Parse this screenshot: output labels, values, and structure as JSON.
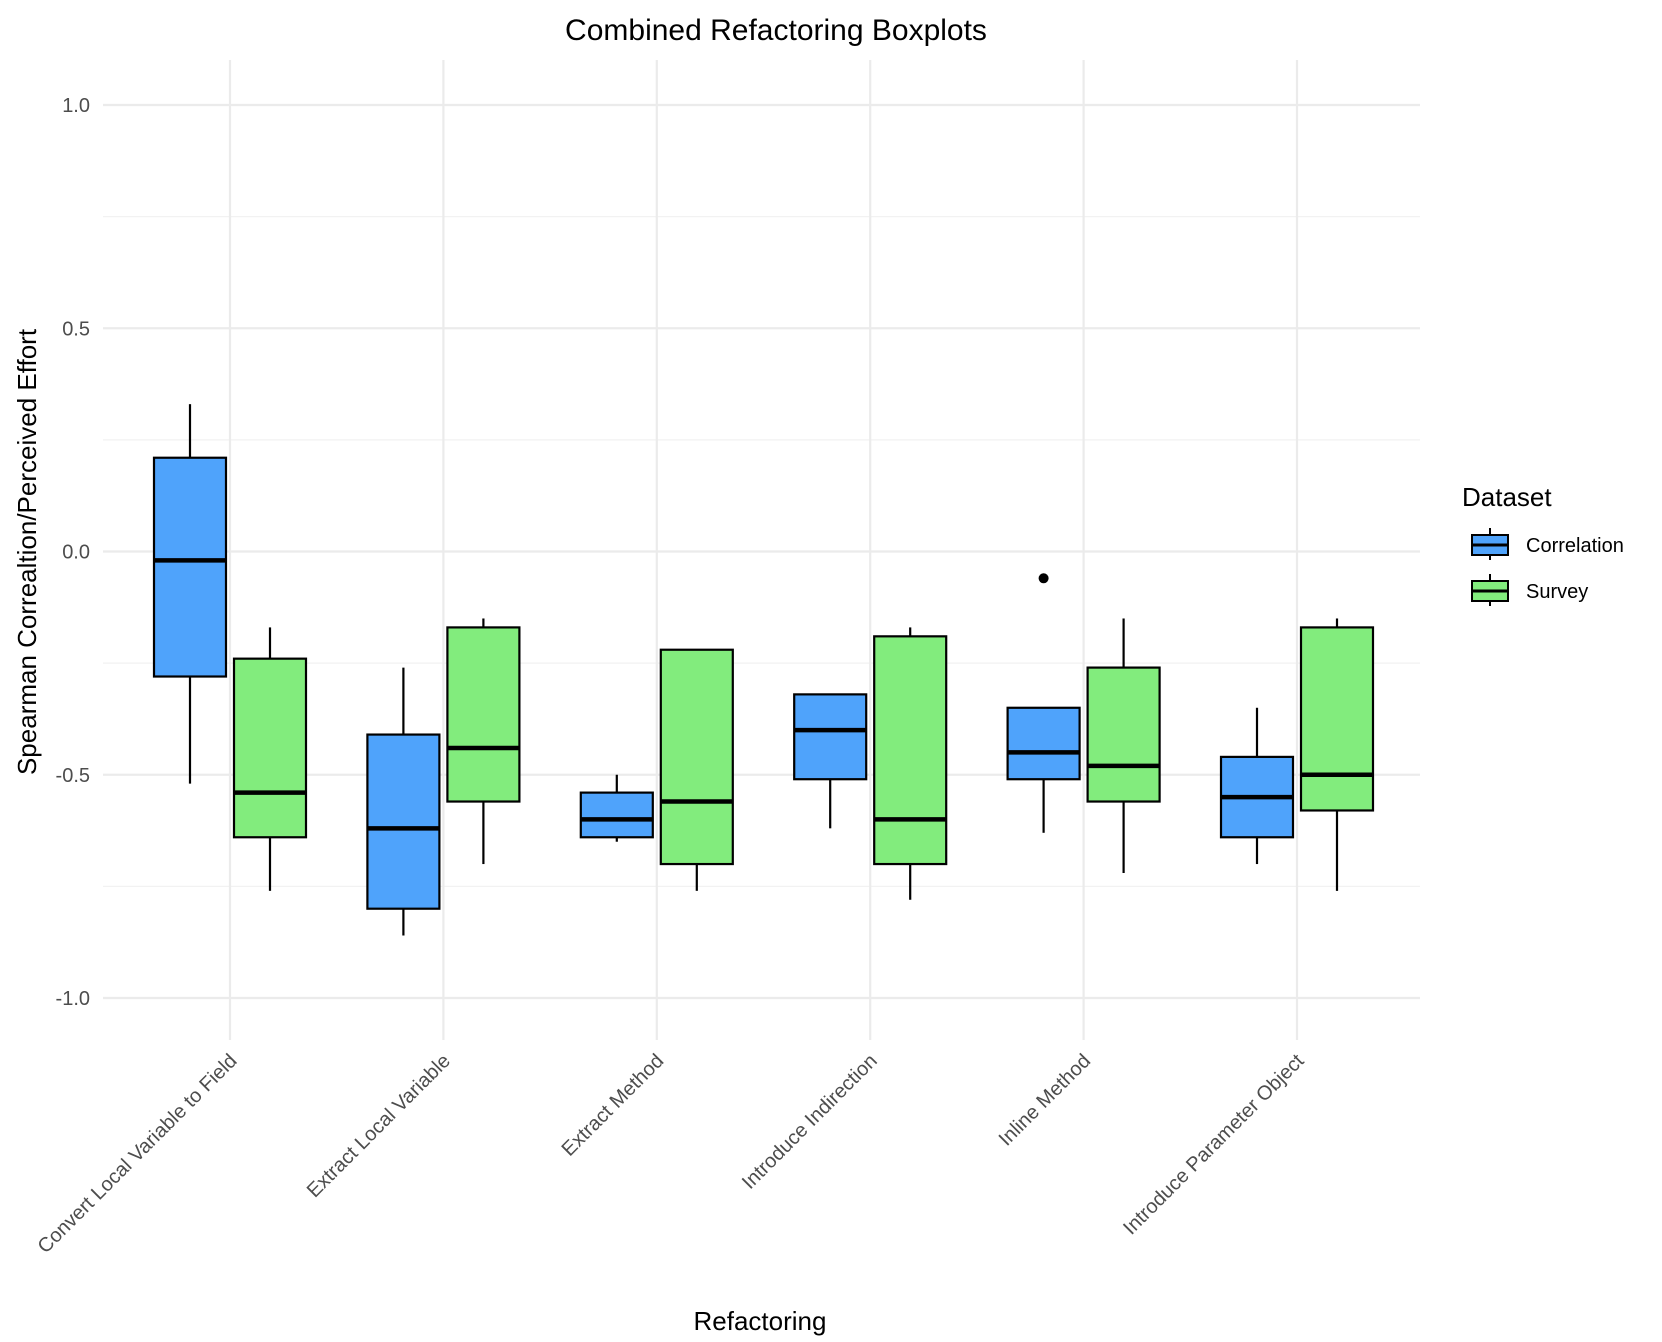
{
  "chart_data": {
    "type": "boxplot",
    "title": "Combined Refactoring Boxplots",
    "xlabel": "Refactoring",
    "ylabel": "Spearman Correaltion/Perceived Effort",
    "ylim": [
      -1.1,
      1.1
    ],
    "yticks": [
      -1.0,
      -0.5,
      0.0,
      0.5,
      1.0
    ],
    "ytick_labels": [
      "-1.0",
      "-0.5",
      "0.0",
      "0.5",
      "1.0"
    ],
    "categories": [
      "Convert Local Variable to Field",
      "Extract Local Variable",
      "Extract Method",
      "Introduce Indirection",
      "Inline Method",
      "Introduce Parameter Object"
    ],
    "legend": {
      "title": "Dataset",
      "position": "right"
    },
    "grid": true,
    "series": [
      {
        "name": "Correlation",
        "color": "#4fa3fb",
        "boxes": [
          {
            "whisker_low": -0.52,
            "q1": -0.28,
            "median": -0.02,
            "q3": 0.21,
            "whisker_high": 0.33,
            "outliers": []
          },
          {
            "whisker_low": -0.86,
            "q1": -0.8,
            "median": -0.62,
            "q3": -0.41,
            "whisker_high": -0.26,
            "outliers": []
          },
          {
            "whisker_low": -0.65,
            "q1": -0.64,
            "median": -0.6,
            "q3": -0.54,
            "whisker_high": -0.5,
            "outliers": []
          },
          {
            "whisker_low": -0.62,
            "q1": -0.51,
            "median": -0.4,
            "q3": -0.32,
            "whisker_high": -0.32,
            "outliers": []
          },
          {
            "whisker_low": -0.63,
            "q1": -0.51,
            "median": -0.45,
            "q3": -0.35,
            "whisker_high": -0.35,
            "outliers": [
              -0.06
            ]
          },
          {
            "whisker_low": -0.7,
            "q1": -0.64,
            "median": -0.55,
            "q3": -0.46,
            "whisker_high": -0.35,
            "outliers": []
          }
        ]
      },
      {
        "name": "Survey",
        "color": "#82ec7d",
        "boxes": [
          {
            "whisker_low": -0.76,
            "q1": -0.64,
            "median": -0.54,
            "q3": -0.24,
            "whisker_high": -0.17,
            "outliers": []
          },
          {
            "whisker_low": -0.7,
            "q1": -0.56,
            "median": -0.44,
            "q3": -0.17,
            "whisker_high": -0.15,
            "outliers": []
          },
          {
            "whisker_low": -0.76,
            "q1": -0.7,
            "median": -0.56,
            "q3": -0.22,
            "whisker_high": -0.22,
            "outliers": []
          },
          {
            "whisker_low": -0.78,
            "q1": -0.7,
            "median": -0.6,
            "q3": -0.19,
            "whisker_high": -0.17,
            "outliers": []
          },
          {
            "whisker_low": -0.72,
            "q1": -0.56,
            "median": -0.48,
            "q3": -0.26,
            "whisker_high": -0.15,
            "outliers": []
          },
          {
            "whisker_low": -0.76,
            "q1": -0.58,
            "median": -0.5,
            "q3": -0.17,
            "whisker_high": -0.15,
            "outliers": []
          }
        ]
      }
    ]
  }
}
